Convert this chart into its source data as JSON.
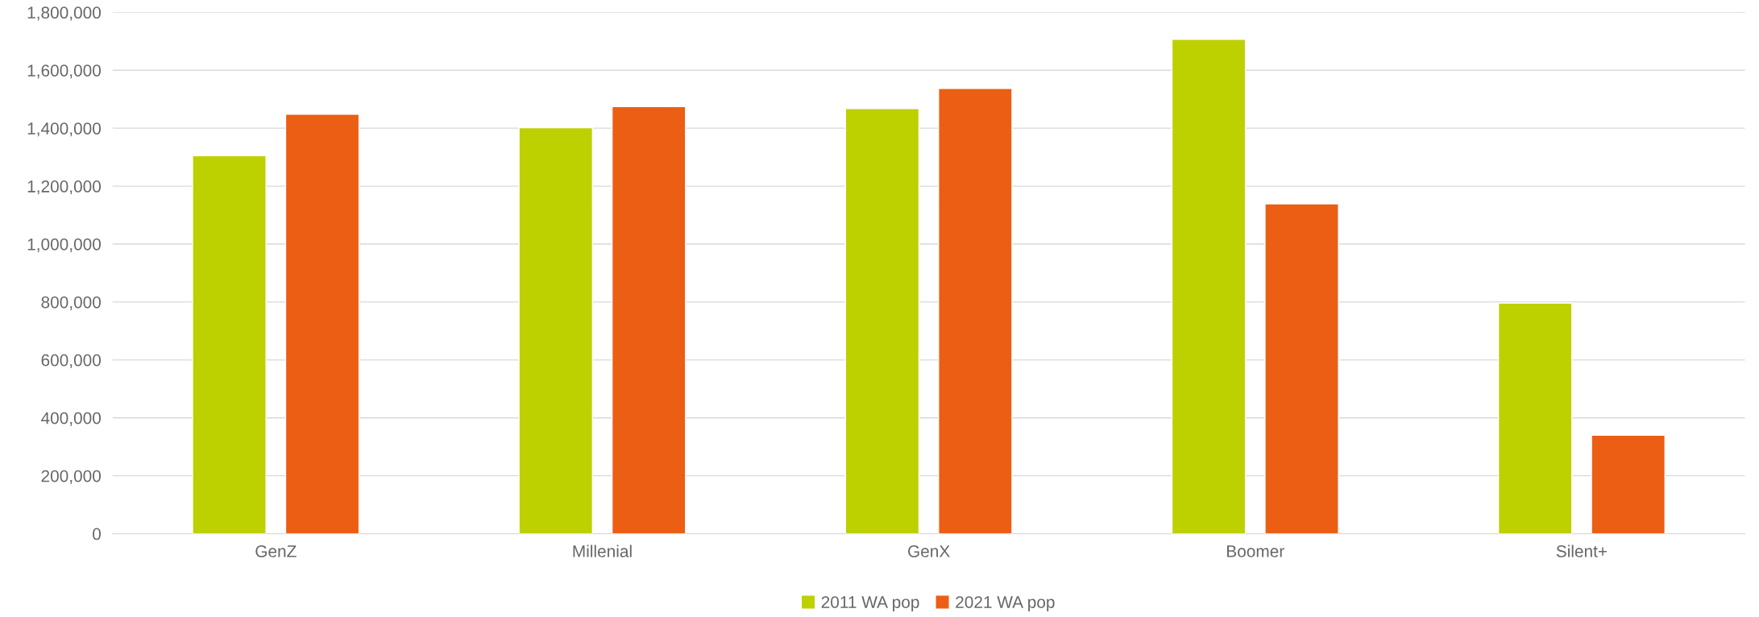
{
  "chart_data": {
    "type": "bar",
    "categories": [
      "GenZ",
      "Millenial",
      "GenX",
      "Boomer",
      "Silent+"
    ],
    "series": [
      {
        "name": "2011 WA pop",
        "color": "#bdd000",
        "values": [
          1305000,
          1402000,
          1468000,
          1707000,
          796000
        ]
      },
      {
        "name": "2021 WA pop",
        "color": "#eb5e14",
        "values": [
          1448000,
          1475000,
          1537000,
          1139000,
          340000
        ]
      }
    ],
    "ylim": [
      0,
      1800000
    ],
    "yticks": [
      {
        "value": 0,
        "label": "0"
      },
      {
        "value": 200000,
        "label": "200,000"
      },
      {
        "value": 400000,
        "label": "400,000"
      },
      {
        "value": 600000,
        "label": "600,000"
      },
      {
        "value": 800000,
        "label": "800,000"
      },
      {
        "value": 1000000,
        "label": "1,000,000"
      },
      {
        "value": 1200000,
        "label": "1,200,000"
      },
      {
        "value": 1400000,
        "label": "1,400,000"
      },
      {
        "value": 1600000,
        "label": "1,600,000"
      },
      {
        "value": 1800000,
        "label": "1,800,000"
      }
    ],
    "grid": "y",
    "legend": "bottom"
  }
}
